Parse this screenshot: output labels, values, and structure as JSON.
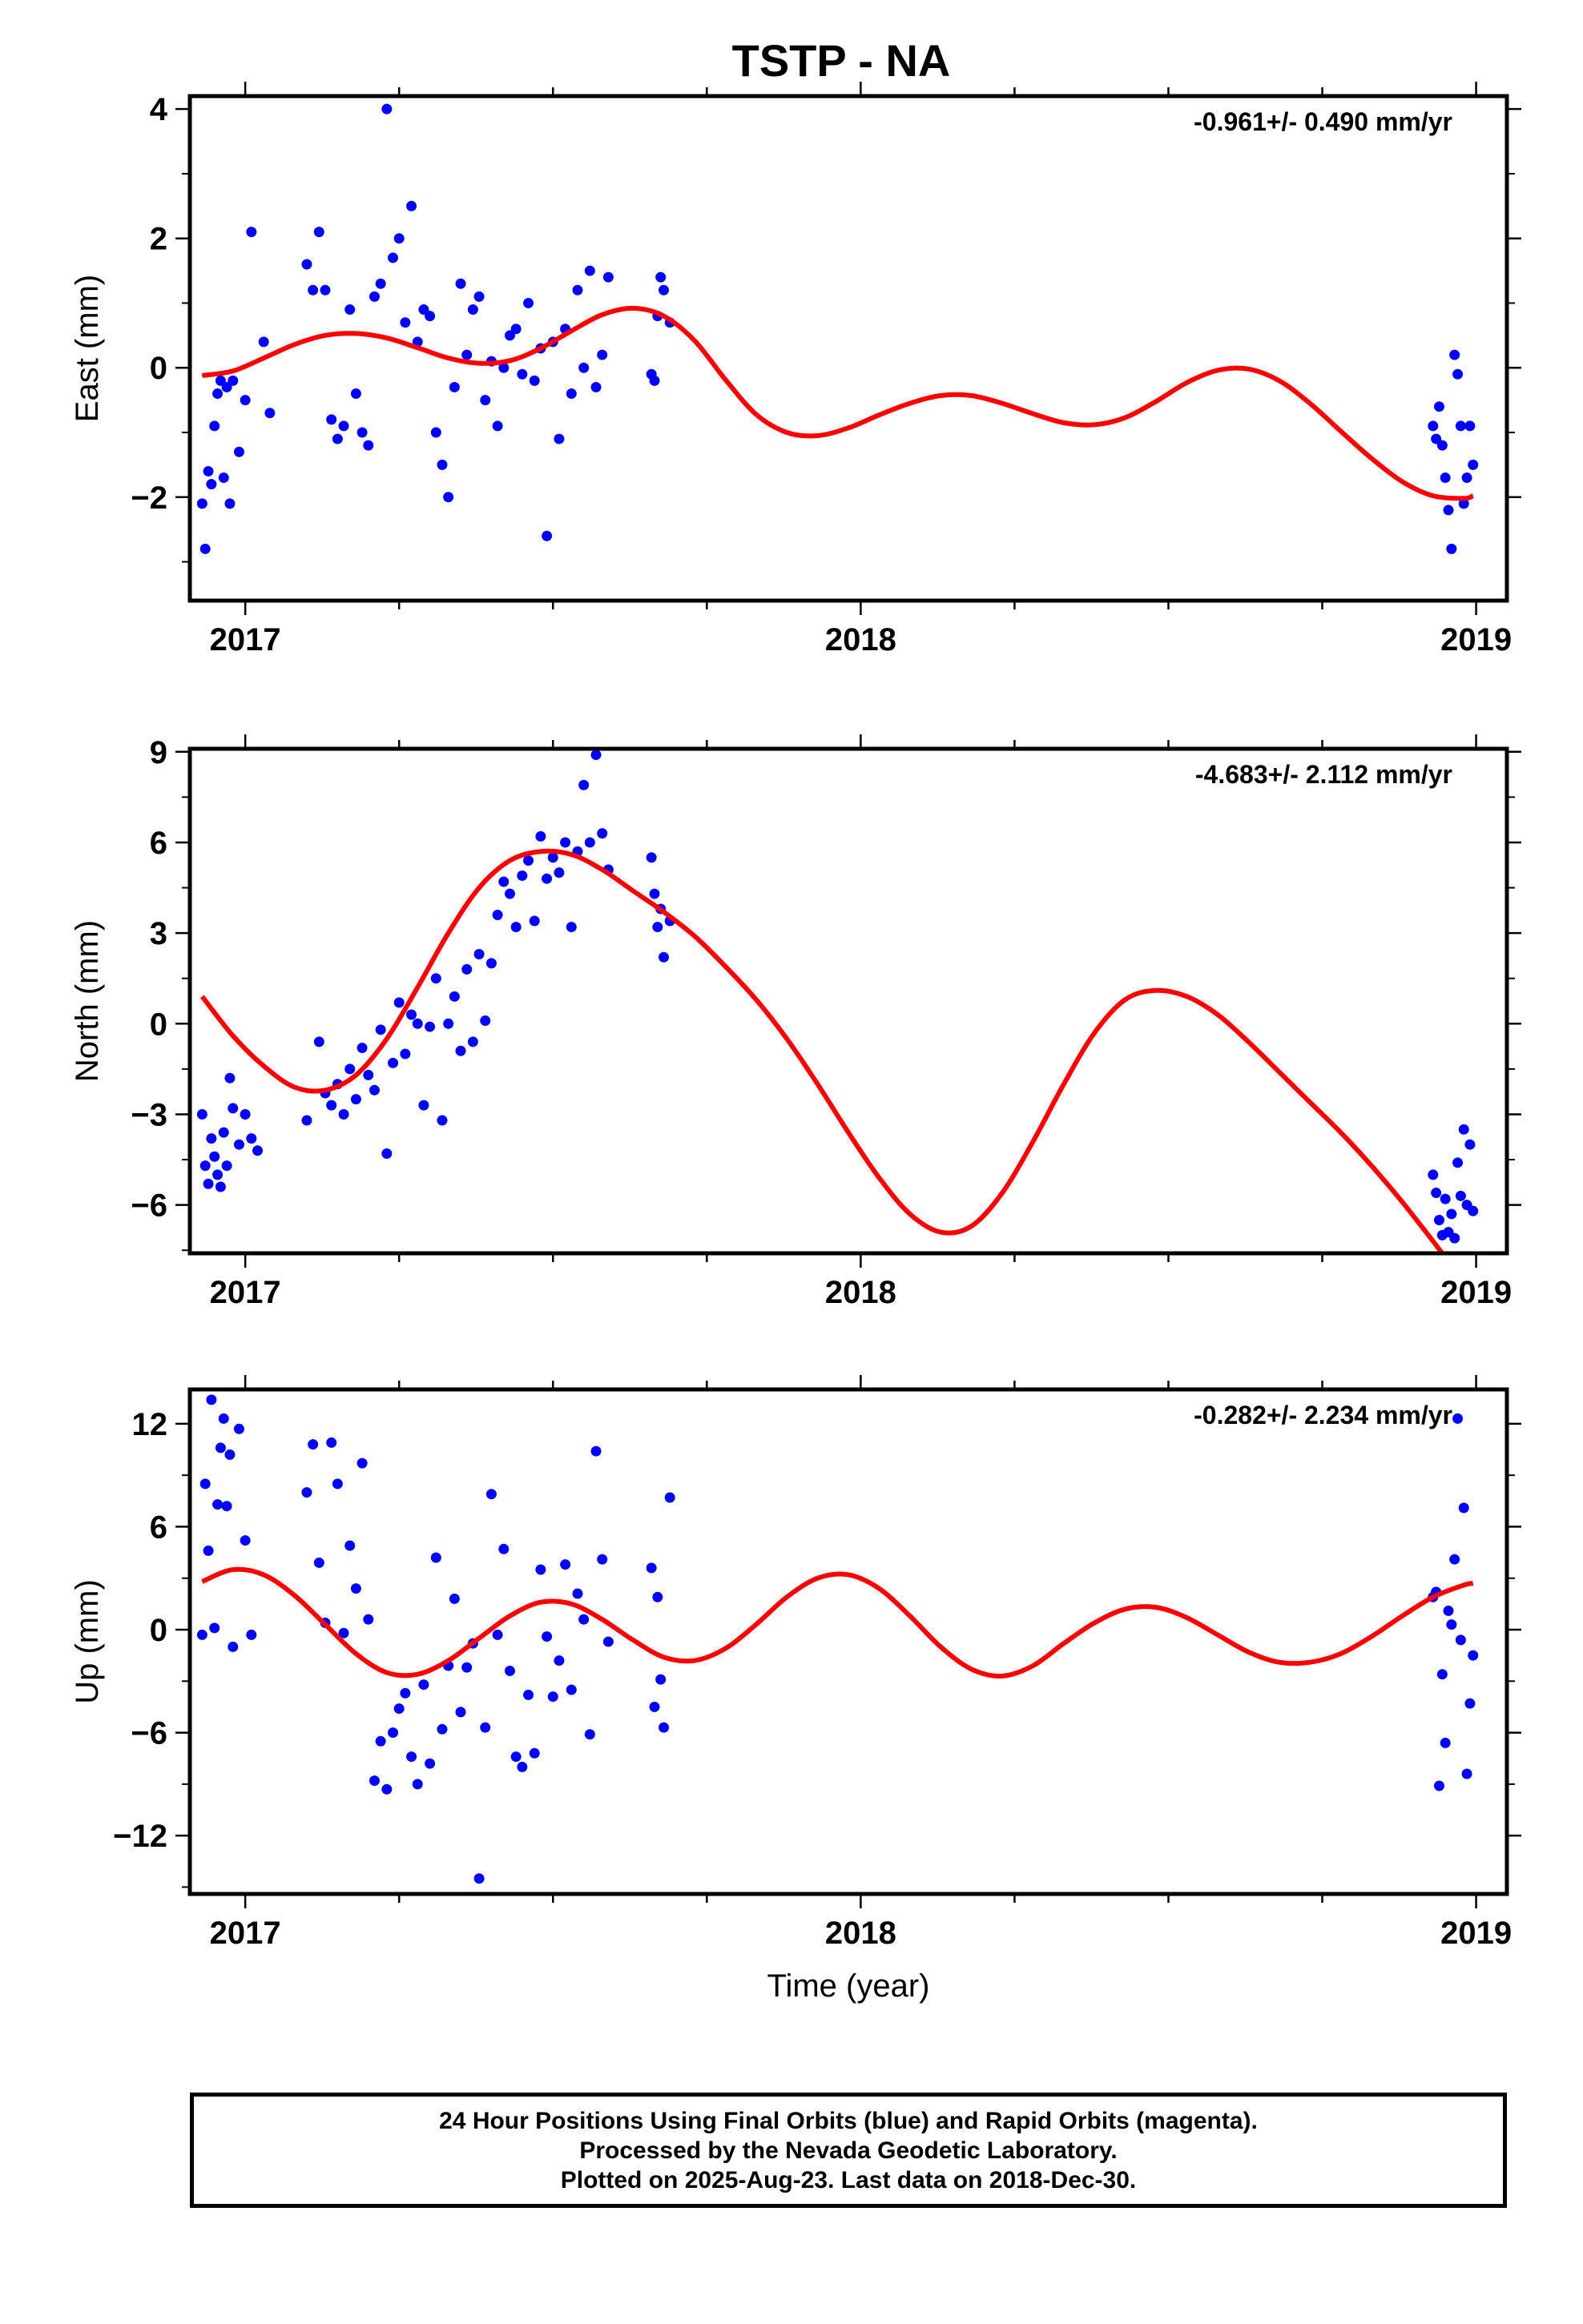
{
  "title": "TSTP - NA",
  "footer": {
    "line1": "24 Hour Positions Using Final Orbits (blue) and Rapid Orbits (magenta).",
    "line2": "Processed by the Nevada Geodetic Laboratory.",
    "line3": "Plotted on 2025-Aug-23. Last data on 2018-Dec-30."
  },
  "colors": {
    "points": "#0000ff",
    "fit": "#ff0000",
    "frame": "#000000"
  },
  "chart_data": [
    {
      "type": "scatter",
      "component": "east",
      "ylabel": "East (mm)",
      "xlabel": "",
      "rate_label": "-0.961+/- 0.490 mm/yr",
      "xlim": [
        2016.91,
        2019.05
      ],
      "ylim": [
        -3.6,
        4.2
      ],
      "xticks": [
        2017,
        2018,
        2019
      ],
      "yticks": [
        -2,
        0,
        2,
        4
      ],
      "yticklabels": [
        "−2",
        "0",
        "2",
        "4"
      ],
      "x": [
        2016.93,
        2016.935,
        2016.94,
        2016.945,
        2016.95,
        2016.955,
        2016.96,
        2016.965,
        2016.97,
        2016.975,
        2016.98,
        2016.99,
        2017.0,
        2017.01,
        2017.03,
        2017.04,
        2017.1,
        2017.11,
        2017.12,
        2017.13,
        2017.14,
        2017.15,
        2017.16,
        2017.17,
        2017.18,
        2017.19,
        2017.2,
        2017.21,
        2017.22,
        2017.23,
        2017.24,
        2017.25,
        2017.26,
        2017.27,
        2017.28,
        2017.29,
        2017.3,
        2017.31,
        2017.32,
        2017.33,
        2017.34,
        2017.35,
        2017.36,
        2017.37,
        2017.38,
        2017.39,
        2017.4,
        2017.41,
        2017.42,
        2017.43,
        2017.44,
        2017.45,
        2017.46,
        2017.47,
        2017.48,
        2017.49,
        2017.5,
        2017.51,
        2017.52,
        2017.53,
        2017.54,
        2017.55,
        2017.56,
        2017.57,
        2017.58,
        2017.59,
        2017.66,
        2017.665,
        2017.67,
        2017.675,
        2017.68,
        2017.69,
        2018.93,
        2018.935,
        2018.94,
        2018.945,
        2018.95,
        2018.955,
        2018.96,
        2018.965,
        2018.97,
        2018.975,
        2018.98,
        2018.985,
        2018.99,
        2018.995
      ],
      "y": [
        -2.1,
        -2.8,
        -1.6,
        -1.8,
        -0.9,
        -0.4,
        -0.2,
        -1.7,
        -0.3,
        -2.1,
        -0.2,
        -1.3,
        -0.5,
        2.1,
        0.4,
        -0.7,
        1.6,
        1.2,
        2.1,
        1.2,
        -0.8,
        -1.1,
        -0.9,
        0.9,
        -0.4,
        -1.0,
        -1.2,
        1.1,
        1.3,
        4.0,
        1.7,
        2.0,
        0.7,
        2.5,
        0.4,
        0.9,
        0.8,
        -1.0,
        -1.5,
        -2.0,
        -0.3,
        1.3,
        0.2,
        0.9,
        1.1,
        -0.5,
        0.1,
        -0.9,
        0.0,
        0.5,
        0.6,
        -0.1,
        1.0,
        -0.2,
        0.3,
        -2.6,
        0.4,
        -1.1,
        0.6,
        -0.4,
        1.2,
        0.0,
        1.5,
        -0.3,
        0.2,
        1.4,
        -0.1,
        -0.2,
        0.8,
        1.4,
        1.2,
        0.7,
        -0.9,
        -1.1,
        -0.6,
        -1.2,
        -1.7,
        -2.2,
        -2.8,
        0.2,
        -0.1,
        -0.9,
        -2.1,
        -1.7,
        -0.9,
        -1.5
      ],
      "fit_label": "fit",
      "fit_x": [
        2016.93,
        2016.98,
        2017.03,
        2017.08,
        2017.13,
        2017.18,
        2017.23,
        2017.28,
        2017.33,
        2017.38,
        2017.43,
        2017.48,
        2017.53,
        2017.58,
        2017.63,
        2017.68,
        2017.73,
        2017.78,
        2017.83,
        2017.88,
        2017.93,
        2017.98,
        2018.03,
        2018.08,
        2018.13,
        2018.18,
        2018.23,
        2018.28,
        2018.33,
        2018.38,
        2018.43,
        2018.48,
        2018.53,
        2018.58,
        2018.63,
        2018.68,
        2018.73,
        2018.78,
        2018.83,
        2018.88,
        2018.93,
        2018.98,
        2018.995
      ],
      "fit_y": [
        -0.12,
        -0.05,
        0.15,
        0.36,
        0.5,
        0.53,
        0.46,
        0.31,
        0.15,
        0.07,
        0.11,
        0.3,
        0.57,
        0.82,
        0.92,
        0.8,
        0.42,
        -0.18,
        -0.72,
        -1.0,
        -1.05,
        -0.93,
        -0.73,
        -0.55,
        -0.43,
        -0.43,
        -0.55,
        -0.71,
        -0.85,
        -0.88,
        -0.77,
        -0.52,
        -0.23,
        -0.04,
        -0.02,
        -0.2,
        -0.55,
        -0.98,
        -1.4,
        -1.76,
        -1.98,
        -2.02,
        -1.98
      ]
    },
    {
      "type": "scatter",
      "component": "north",
      "ylabel": "North (mm)",
      "xlabel": "",
      "rate_label": "-4.683+/- 2.112 mm/yr",
      "xlim": [
        2016.91,
        2019.05
      ],
      "ylim": [
        -7.6,
        9.1
      ],
      "xticks": [
        2017,
        2018,
        2019
      ],
      "yticks": [
        -6,
        -3,
        0,
        3,
        6,
        9
      ],
      "yticklabels": [
        "−6",
        "−3",
        "0",
        "3",
        "6",
        "9"
      ],
      "x": [
        2016.93,
        2016.935,
        2016.94,
        2016.945,
        2016.95,
        2016.955,
        2016.96,
        2016.965,
        2016.97,
        2016.975,
        2016.98,
        2016.99,
        2017.0,
        2017.01,
        2017.02,
        2017.1,
        2017.12,
        2017.13,
        2017.14,
        2017.15,
        2017.16,
        2017.17,
        2017.18,
        2017.19,
        2017.2,
        2017.21,
        2017.22,
        2017.23,
        2017.24,
        2017.25,
        2017.26,
        2017.27,
        2017.28,
        2017.29,
        2017.3,
        2017.31,
        2017.32,
        2017.33,
        2017.34,
        2017.35,
        2017.36,
        2017.37,
        2017.38,
        2017.39,
        2017.4,
        2017.41,
        2017.42,
        2017.43,
        2017.44,
        2017.45,
        2017.46,
        2017.47,
        2017.48,
        2017.49,
        2017.5,
        2017.51,
        2017.52,
        2017.53,
        2017.54,
        2017.55,
        2017.56,
        2017.57,
        2017.58,
        2017.59,
        2017.66,
        2017.665,
        2017.67,
        2017.675,
        2017.68,
        2017.69,
        2018.93,
        2018.935,
        2018.94,
        2018.945,
        2018.95,
        2018.955,
        2018.96,
        2018.965,
        2018.97,
        2018.975,
        2018.98,
        2018.985,
        2018.99,
        2018.995
      ],
      "y": [
        -3.0,
        -4.7,
        -5.3,
        -3.8,
        -4.4,
        -5.0,
        -5.4,
        -3.6,
        -4.7,
        -1.8,
        -2.8,
        -4.0,
        -3.0,
        -3.8,
        -4.2,
        -3.2,
        -0.6,
        -2.3,
        -2.7,
        -2.0,
        -3.0,
        -1.5,
        -2.5,
        -0.8,
        -1.7,
        -2.2,
        -0.2,
        -4.3,
        -1.3,
        0.7,
        -1.0,
        0.3,
        0.0,
        -2.7,
        -0.1,
        1.5,
        -3.2,
        0.0,
        0.9,
        -0.9,
        1.8,
        -0.6,
        2.3,
        0.1,
        2.0,
        3.6,
        4.7,
        4.3,
        3.2,
        4.9,
        5.4,
        3.4,
        6.2,
        4.8,
        5.5,
        5.0,
        6.0,
        3.2,
        5.7,
        7.9,
        6.0,
        8.9,
        6.3,
        5.1,
        5.5,
        4.3,
        3.2,
        3.8,
        2.2,
        3.4,
        -5.0,
        -5.6,
        -6.5,
        -7.0,
        -5.8,
        -6.9,
        -6.3,
        -7.1,
        -4.6,
        -5.7,
        -3.5,
        -6.0,
        -4.0,
        -6.2
      ],
      "fit_label": "fit",
      "fit_x": [
        2016.93,
        2016.98,
        2017.03,
        2017.08,
        2017.13,
        2017.18,
        2017.23,
        2017.28,
        2017.33,
        2017.38,
        2017.43,
        2017.48,
        2017.53,
        2017.58,
        2017.63,
        2017.68,
        2017.73,
        2017.78,
        2017.83,
        2017.88,
        2017.93,
        2017.98,
        2018.03,
        2018.08,
        2018.13,
        2018.18,
        2018.23,
        2018.28,
        2018.33,
        2018.38,
        2018.43,
        2018.48,
        2018.53,
        2018.58,
        2018.63,
        2018.68,
        2018.73,
        2018.78,
        2018.83,
        2018.88,
        2018.93,
        2018.945
      ],
      "fit_y": [
        0.9,
        -0.4,
        -1.4,
        -2.1,
        -2.2,
        -1.7,
        -0.5,
        1.2,
        3.0,
        4.5,
        5.4,
        5.7,
        5.6,
        5.1,
        4.4,
        3.7,
        2.9,
        1.9,
        0.8,
        -0.5,
        -2.0,
        -3.6,
        -5.1,
        -6.3,
        -6.9,
        -6.7,
        -5.6,
        -3.9,
        -2.0,
        -0.3,
        0.8,
        1.1,
        0.9,
        0.3,
        -0.6,
        -1.6,
        -2.6,
        -3.6,
        -4.7,
        -5.9,
        -7.2,
        -7.6
      ]
    },
    {
      "type": "scatter",
      "component": "up",
      "ylabel": "Up (mm)",
      "xlabel": "Time (year)",
      "rate_label": "-0.282+/- 2.234 mm/yr",
      "xlim": [
        2016.91,
        2019.05
      ],
      "ylim": [
        -15.4,
        14.0
      ],
      "xticks": [
        2017,
        2018,
        2019
      ],
      "yticks": [
        -12,
        -6,
        0,
        6,
        12
      ],
      "yticklabels": [
        "−12",
        "−6",
        "0",
        "6",
        "12"
      ],
      "x": [
        2016.93,
        2016.935,
        2016.94,
        2016.945,
        2016.95,
        2016.955,
        2016.96,
        2016.965,
        2016.97,
        2016.975,
        2016.98,
        2016.99,
        2017.0,
        2017.01,
        2017.1,
        2017.11,
        2017.12,
        2017.13,
        2017.14,
        2017.15,
        2017.16,
        2017.17,
        2017.18,
        2017.19,
        2017.2,
        2017.21,
        2017.22,
        2017.23,
        2017.24,
        2017.25,
        2017.26,
        2017.27,
        2017.28,
        2017.29,
        2017.3,
        2017.31,
        2017.32,
        2017.33,
        2017.34,
        2017.35,
        2017.36,
        2017.37,
        2017.38,
        2017.39,
        2017.4,
        2017.41,
        2017.42,
        2017.43,
        2017.44,
        2017.45,
        2017.46,
        2017.47,
        2017.48,
        2017.49,
        2017.5,
        2017.51,
        2017.52,
        2017.53,
        2017.54,
        2017.55,
        2017.56,
        2017.57,
        2017.58,
        2017.59,
        2017.66,
        2017.665,
        2017.67,
        2017.675,
        2017.68,
        2017.69,
        2018.93,
        2018.935,
        2018.94,
        2018.945,
        2018.95,
        2018.955,
        2018.96,
        2018.965,
        2018.97,
        2018.975,
        2018.98,
        2018.985,
        2018.99,
        2018.995
      ],
      "y": [
        -0.3,
        8.5,
        4.6,
        13.4,
        0.1,
        7.3,
        10.6,
        12.3,
        7.2,
        10.2,
        -1.0,
        11.7,
        5.2,
        -0.3,
        8.0,
        10.8,
        3.9,
        0.4,
        10.9,
        8.5,
        -0.2,
        4.9,
        2.4,
        9.7,
        0.6,
        -8.8,
        -6.5,
        -9.3,
        -6.0,
        -4.6,
        -3.7,
        -7.4,
        -9.0,
        -3.2,
        -7.8,
        4.2,
        -5.8,
        -2.1,
        1.8,
        -4.8,
        -2.2,
        -0.8,
        -14.5,
        -5.7,
        7.9,
        -0.3,
        4.7,
        -2.4,
        -7.4,
        -8.0,
        -3.8,
        -7.2,
        3.5,
        -0.4,
        -3.9,
        -1.8,
        3.8,
        -3.5,
        2.1,
        0.6,
        -6.1,
        10.4,
        4.1,
        -0.7,
        3.6,
        -4.5,
        1.9,
        -2.9,
        -5.7,
        7.7,
        1.9,
        2.2,
        -9.1,
        -2.6,
        -6.6,
        1.1,
        0.3,
        4.1,
        12.3,
        -0.6,
        7.1,
        -8.4,
        -4.3,
        -1.5
      ],
      "fit_label": "fit",
      "fit_x": [
        2016.93,
        2016.98,
        2017.03,
        2017.08,
        2017.13,
        2017.18,
        2017.23,
        2017.28,
        2017.33,
        2017.38,
        2017.43,
        2017.48,
        2017.53,
        2017.58,
        2017.63,
        2017.68,
        2017.73,
        2017.78,
        2017.83,
        2017.88,
        2017.93,
        2017.98,
        2018.03,
        2018.08,
        2018.13,
        2018.18,
        2018.23,
        2018.28,
        2018.33,
        2018.38,
        2018.43,
        2018.48,
        2018.53,
        2018.58,
        2018.63,
        2018.68,
        2018.73,
        2018.78,
        2018.83,
        2018.88,
        2018.93,
        2018.98,
        2018.995
      ],
      "fit_y": [
        2.8,
        3.5,
        3.2,
        2.0,
        0.3,
        -1.4,
        -2.5,
        -2.6,
        -1.8,
        -0.5,
        0.8,
        1.6,
        1.5,
        0.6,
        -0.6,
        -1.6,
        -1.8,
        -1.1,
        0.3,
        1.9,
        3.0,
        3.2,
        2.4,
        0.8,
        -1.0,
        -2.3,
        -2.7,
        -2.1,
        -0.8,
        0.4,
        1.2,
        1.3,
        0.7,
        -0.3,
        -1.3,
        -1.9,
        -1.9,
        -1.4,
        -0.4,
        0.8,
        1.9,
        2.6,
        2.7
      ]
    }
  ]
}
